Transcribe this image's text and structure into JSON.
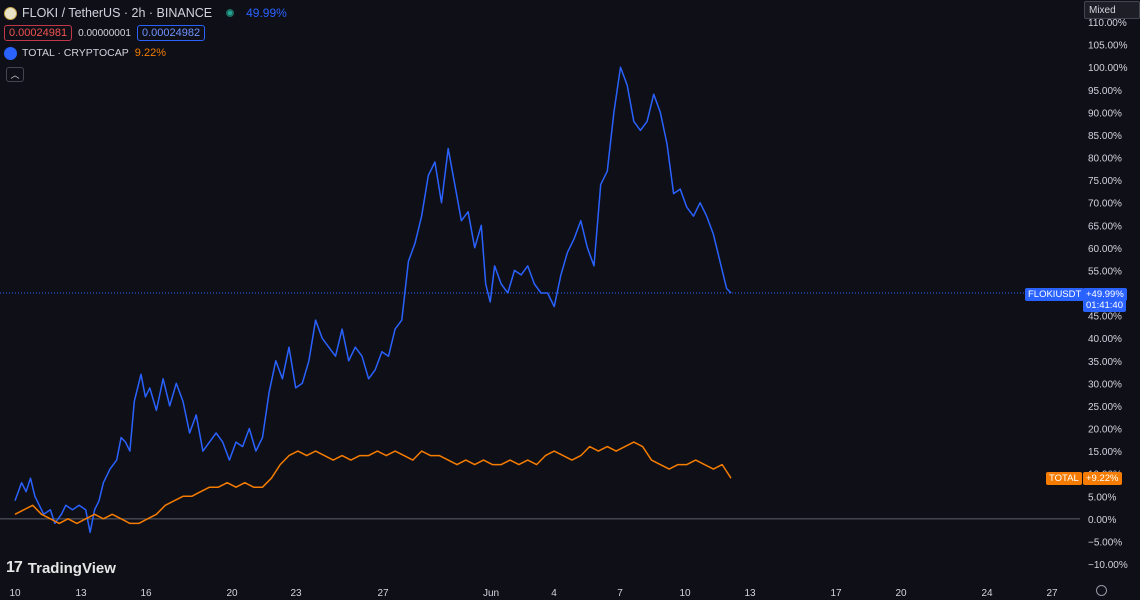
{
  "legend": {
    "main_title": "FLOKI / TetherUS · 2h · BINANCE",
    "main_change": "49.99%",
    "bid": "0.00024981",
    "spread": "0.00000001",
    "ask": "0.00024982",
    "compare_title": "TOTAL · CRYPTOCAP",
    "compare_change": "9.22%",
    "collapse_icon": "chevron-up-icon"
  },
  "scale_mode": "Mixed",
  "price_tags": {
    "main_label": "FLOKIUSDT",
    "main_value": "+49.99%",
    "countdown": "01:41:40",
    "compare_label": "TOTAL",
    "compare_value": "+9.22%"
  },
  "branding": "TradingView",
  "colors": {
    "main": "#2962ff",
    "compare": "#f57c00",
    "background": "#0f0f17"
  },
  "chart_data": {
    "type": "line",
    "ylim": [
      -10,
      110
    ],
    "y_ticks": [
      "110.00%",
      "105.00%",
      "100.00%",
      "95.00%",
      "90.00%",
      "85.00%",
      "80.00%",
      "75.00%",
      "70.00%",
      "65.00%",
      "60.00%",
      "55.00%",
      "50.00%",
      "45.00%",
      "40.00%",
      "35.00%",
      "30.00%",
      "25.00%",
      "20.00%",
      "15.00%",
      "10.00%",
      "5.00%",
      "0.00%",
      "−5.00%",
      "−10.00%"
    ],
    "x_ticks": [
      "10",
      "13",
      "16",
      "20",
      "23",
      "27",
      "Jun",
      "4",
      "7",
      "10",
      "13",
      "17",
      "20",
      "24",
      "27"
    ],
    "grid": false,
    "series": [
      {
        "name": "FLOKIUSDT",
        "x": [
          10,
          10.3,
          10.5,
          10.7,
          10.9,
          11.1,
          11.3,
          11.6,
          11.8,
          12.1,
          12.3,
          12.6,
          12.9,
          13.2,
          13.4,
          13.6,
          13.8,
          14.0,
          14.3,
          14.6,
          14.8,
          15.0,
          15.2,
          15.4,
          15.7,
          15.9,
          16.1,
          16.4,
          16.7,
          17.0,
          17.3,
          17.6,
          17.9,
          18.2,
          18.5,
          18.8,
          19.1,
          19.4,
          19.7,
          20.0,
          20.3,
          20.6,
          20.9,
          21.2,
          21.5,
          21.8,
          22.1,
          22.4,
          22.7,
          23.0,
          23.3,
          23.6,
          23.9,
          24.2,
          24.5,
          24.8,
          25.1,
          25.4,
          25.7,
          26.0,
          26.3,
          26.6,
          26.9,
          27.2,
          27.5,
          27.8,
          28.1,
          28.4,
          28.7,
          29.0,
          29.3,
          29.6,
          29.9,
          30.2,
          30.5,
          30.8,
          31.1,
          31.3,
          31.5,
          31.7,
          32.0,
          32.3,
          32.6,
          32.9,
          33.2,
          33.5,
          33.8,
          34.1,
          34.4,
          34.7,
          35.0,
          35.3,
          35.6,
          35.9,
          36.2,
          36.5,
          36.8,
          37.1,
          37.4,
          37.7,
          38.0,
          38.3,
          38.6,
          38.9,
          39.2,
          39.5,
          39.8,
          40.1,
          40.4,
          40.7,
          41.0,
          41.3,
          41.6,
          41.9,
          42.2,
          42.4
        ],
        "values": [
          4,
          8,
          6,
          9,
          5,
          3,
          1,
          2,
          -1,
          1,
          3,
          2,
          3,
          2,
          -3,
          2,
          4,
          8,
          11,
          13,
          18,
          17,
          15,
          26,
          32,
          27,
          29,
          24,
          31,
          25,
          30,
          26,
          19,
          23,
          15,
          17,
          19,
          17,
          13,
          17,
          16,
          20,
          15,
          18,
          28,
          35,
          31,
          38,
          29,
          30,
          35,
          44,
          40,
          38,
          36,
          42,
          35,
          38,
          36,
          31,
          33,
          37,
          36,
          42,
          44,
          57,
          61,
          67,
          76,
          79,
          70,
          82,
          74,
          66,
          68,
          60,
          65,
          52,
          48,
          56,
          52,
          50,
          55,
          54,
          56,
          52,
          50,
          50,
          47,
          54,
          59,
          62,
          66,
          60,
          56,
          74,
          77,
          90,
          100,
          96,
          88,
          86,
          88,
          94,
          90,
          83,
          72,
          73,
          69,
          67,
          70,
          67,
          63,
          57,
          51,
          50
        ]
      },
      {
        "name": "TOTAL",
        "x": [
          10,
          10.4,
          10.8,
          11.2,
          11.6,
          12.0,
          12.4,
          12.8,
          13.2,
          13.6,
          14.0,
          14.4,
          14.8,
          15.2,
          15.6,
          16.0,
          16.4,
          16.8,
          17.2,
          17.6,
          18.0,
          18.4,
          18.8,
          19.2,
          19.6,
          20.0,
          20.4,
          20.8,
          21.2,
          21.6,
          22.0,
          22.4,
          22.8,
          23.2,
          23.6,
          24.0,
          24.4,
          24.8,
          25.2,
          25.6,
          26.0,
          26.4,
          26.8,
          27.2,
          27.6,
          28.0,
          28.4,
          28.8,
          29.2,
          29.6,
          30.0,
          30.4,
          30.8,
          31.2,
          31.6,
          32.0,
          32.4,
          32.8,
          33.2,
          33.6,
          34.0,
          34.4,
          34.8,
          35.2,
          35.6,
          36.0,
          36.4,
          36.8,
          37.2,
          37.6,
          38.0,
          38.4,
          38.8,
          39.2,
          39.6,
          40.0,
          40.4,
          40.8,
          41.2,
          41.6,
          42.0,
          42.4
        ],
        "values": [
          1,
          2,
          3,
          1,
          0,
          -1,
          0,
          -1,
          0,
          1,
          0,
          1,
          0,
          -1,
          -1,
          0,
          1,
          3,
          4,
          5,
          5,
          6,
          7,
          7,
          8,
          7,
          8,
          7,
          7,
          9,
          12,
          14,
          15,
          14,
          15,
          14,
          13,
          14,
          13,
          14,
          14,
          15,
          14,
          15,
          14,
          13,
          15,
          14,
          14,
          13,
          12,
          13,
          12,
          13,
          12,
          12,
          13,
          12,
          13,
          12,
          14,
          15,
          14,
          13,
          14,
          16,
          15,
          16,
          15,
          16,
          17,
          16,
          13,
          12,
          11,
          12,
          12,
          13,
          12,
          11,
          12,
          9
        ]
      }
    ]
  }
}
